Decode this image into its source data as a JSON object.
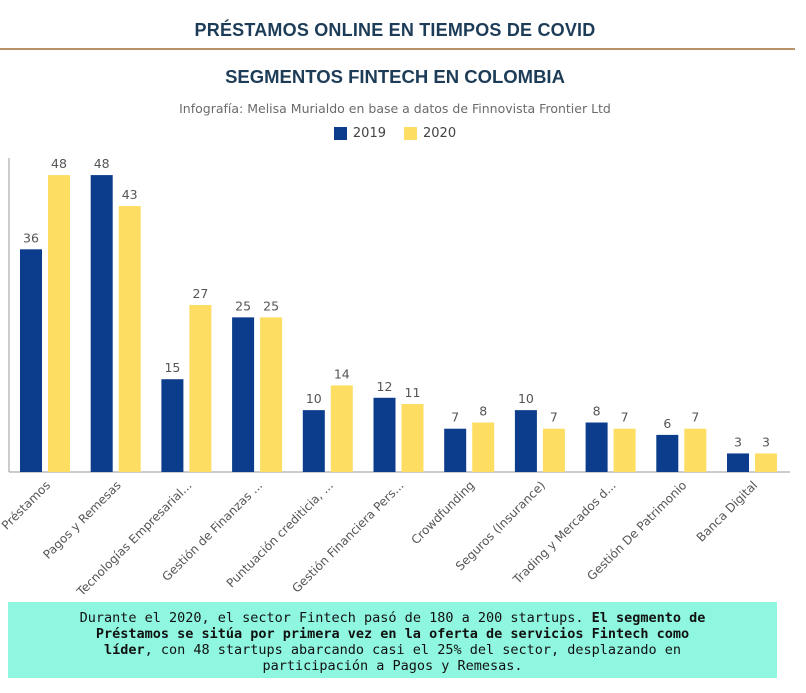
{
  "header": {
    "title": "PRÉSTAMOS ONLINE EN TIEMPOS DE COVID"
  },
  "colors": {
    "series_2019": "#0b3d8c",
    "series_2020": "#fedd63",
    "header_rule": "#b9926c",
    "note_bg": "#8ff7df"
  },
  "chart_data": {
    "type": "bar",
    "title": "SEGMENTOS FINTECH EN COLOMBIA",
    "subtitle": "Infografía: Melisa Murialdo en base a datos de Finnovista Frontier Ltd",
    "categories": [
      "Préstamos",
      "Pagos y Remesas",
      "Tecnologías Empresarial...",
      "Gestión de Finanzas ...",
      "Puntuación crediticia, ...",
      "Gestión Financiera Pers...",
      "Crowdfunding",
      "Seguros (Insurance)",
      "Trading y Mercados d...",
      "Gestión De Patrimonio",
      "Banca Digital"
    ],
    "series": [
      {
        "name": "2019",
        "values": [
          36,
          48,
          15,
          25,
          10,
          12,
          7,
          10,
          8,
          6,
          3
        ]
      },
      {
        "name": "2020",
        "values": [
          48,
          43,
          27,
          25,
          14,
          11,
          8,
          7,
          7,
          7,
          3
        ]
      }
    ],
    "ylim": [
      0,
      50
    ],
    "grid": false,
    "legend_position": "top-center",
    "data_labels": true
  },
  "note": {
    "part1": "Durante el 2020, el sector Fintech pasó de 180 a 200 startups. ",
    "part2_bold": "El segmento de Préstamos se sitúa por primera vez en la oferta de servicios Fintech como líder",
    "part3": ", con 48 startups abarcando casi el 25% del sector, desplazando en participación a Pagos y Remesas."
  }
}
